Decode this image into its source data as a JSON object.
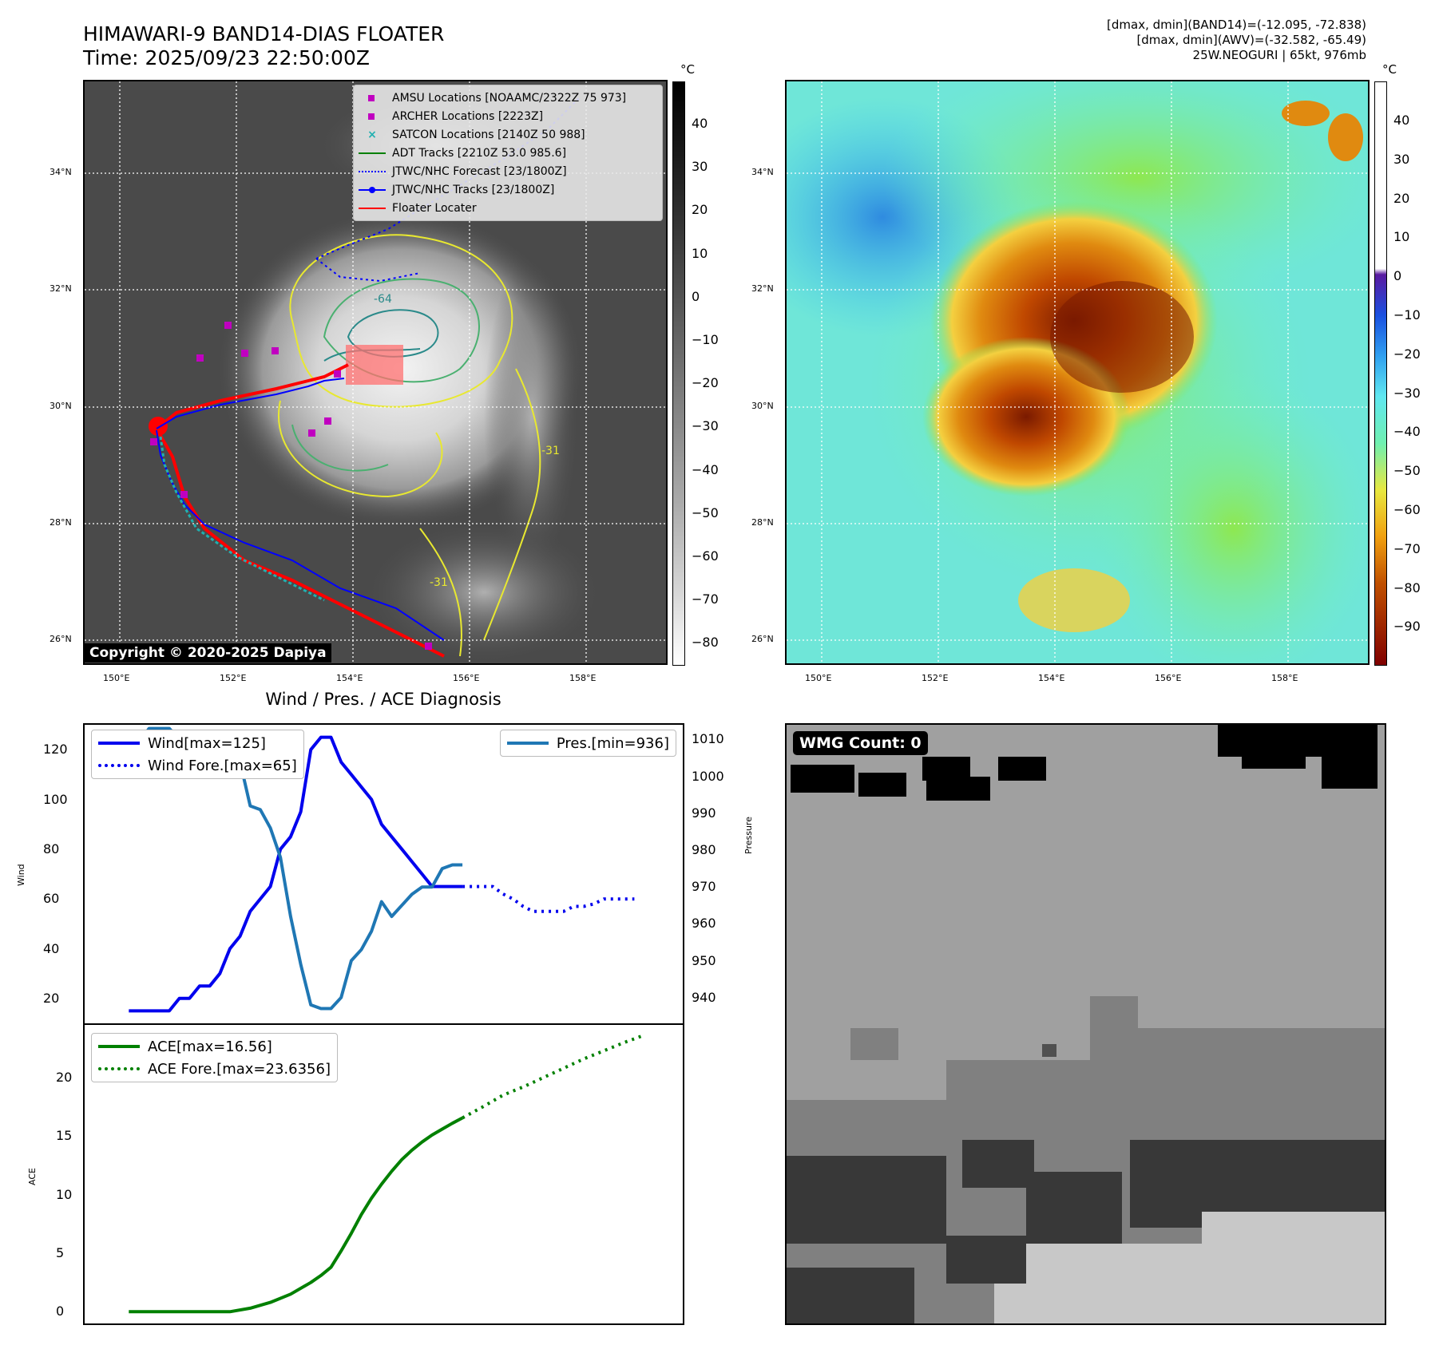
{
  "header": {
    "title_line1": "HIMAWARI-9 BAND14-DIAS FLOATER",
    "title_line2": "Time: 2025/09/23 22:50:00Z",
    "info_line1": "[dmax, dmin](BAND14)=(-12.095, -72.838)",
    "info_line2": "[dmax, dmin](AWV)=(-32.582, -65.49)",
    "info_line3": "25W.NEOGURI | 65kt, 976mb"
  },
  "map": {
    "lat_ticks": [
      "34°N",
      "32°N",
      "30°N",
      "28°N",
      "26°N"
    ],
    "lon_ticks": [
      "150°E",
      "152°E",
      "154°E",
      "156°E",
      "158°E"
    ],
    "copyright": "Copyright © 2020-2025 Dapiya",
    "contour_labels": [
      "-31",
      "-64",
      "-31",
      "-31",
      "-31"
    ],
    "colorbar_unit": "°C",
    "left_colorbar_ticks": [
      "40",
      "30",
      "20",
      "10",
      "0",
      "−10",
      "−20",
      "−30",
      "−40",
      "−50",
      "−60",
      "−70",
      "−80"
    ],
    "right_colorbar_ticks": [
      "40",
      "30",
      "20",
      "10",
      "0",
      "−10",
      "−20",
      "−30",
      "−40",
      "−50",
      "−60",
      "−70",
      "−80",
      "−90"
    ],
    "legend": [
      {
        "label": "AMSU Locations [NOAAMC/2322Z 75 973]",
        "symbol": "square",
        "color": "#c000c0"
      },
      {
        "label": "ARCHER Locations [2223Z]",
        "symbol": "square",
        "color": "#c000c0"
      },
      {
        "label": "SATCON Locations [2140Z 50 988]",
        "symbol": "x",
        "color": "#20b0b0"
      },
      {
        "label": "ADT Tracks [2210Z 53.0 985.6]",
        "symbol": "line",
        "color": "#008000"
      },
      {
        "label": "JTWC/NHC Forecast [23/1800Z]",
        "symbol": "dotted",
        "color": "#0000ff"
      },
      {
        "label": "JTWC/NHC Tracks [23/1800Z]",
        "symbol": "line-dot",
        "color": "#0000ff"
      },
      {
        "label": "Floater Locater",
        "symbol": "line",
        "color": "#ff0000"
      }
    ]
  },
  "bottom_right": {
    "wmg_label": "WMG Count: 0"
  },
  "chart_data": [
    {
      "type": "line",
      "title": "Wind / Pres. / ACE Diagnosis",
      "ylabel": "Wind",
      "ylabel_right": "Pressure",
      "ylim": [
        10,
        130
      ],
      "ylim_right": [
        933,
        1014
      ],
      "y_ticks": [
        20,
        40,
        60,
        80,
        100,
        120
      ],
      "y_ticks_right": [
        940,
        950,
        960,
        970,
        980,
        990,
        1000,
        1010
      ],
      "series": [
        {
          "name": "Wind[max=125]",
          "color": "#0000ee",
          "style": "solid",
          "axis": "left",
          "x": [
            0,
            1,
            2,
            3,
            4,
            5,
            6,
            7,
            8,
            9,
            10,
            11,
            12,
            13,
            14,
            15,
            16,
            17,
            18,
            19,
            20,
            21,
            22,
            23,
            24,
            25,
            26,
            27,
            28,
            29,
            30,
            31,
            32,
            33
          ],
          "values": [
            15,
            15,
            15,
            15,
            15,
            20,
            20,
            25,
            25,
            30,
            40,
            45,
            55,
            60,
            65,
            80,
            85,
            95,
            120,
            125,
            125,
            115,
            110,
            105,
            100,
            90,
            85,
            80,
            75,
            70,
            65,
            65,
            65,
            65
          ]
        },
        {
          "name": "Wind Fore.[max=65]",
          "color": "#0000ee",
          "style": "dotted",
          "axis": "left",
          "x": [
            33,
            34,
            35,
            36,
            37,
            38,
            39,
            40,
            41,
            42,
            43,
            44,
            45,
            46,
            47,
            48,
            49,
            50
          ],
          "values": [
            65,
            65,
            65,
            65,
            62,
            60,
            57,
            55,
            55,
            55,
            55,
            57,
            57,
            58,
            60,
            60,
            60,
            60
          ]
        },
        {
          "name": "Pres.[min=936]",
          "color": "#1f77b4",
          "style": "solid",
          "axis": "right",
          "x": [
            0,
            1,
            2,
            3,
            4,
            5,
            6,
            7,
            8,
            9,
            10,
            11,
            12,
            13,
            14,
            15,
            16,
            17,
            18,
            19,
            20,
            21,
            22,
            23,
            24,
            25,
            26,
            27,
            28,
            29,
            30,
            31,
            32,
            33
          ],
          "values": [
            1009,
            1009,
            1013,
            1013,
            1013,
            1010,
            1009,
            1009,
            1009,
            1009,
            1008,
            1004,
            992,
            991,
            986,
            978,
            962,
            949,
            938,
            937,
            937,
            940,
            950,
            953,
            958,
            966,
            962,
            965,
            968,
            970,
            970,
            975,
            976,
            976
          ]
        }
      ]
    },
    {
      "type": "line",
      "ylabel": "ACE",
      "ylim": [
        -1,
        24.5
      ],
      "y_ticks": [
        0,
        5,
        10,
        15,
        20
      ],
      "series": [
        {
          "name": "ACE[max=16.56]",
          "color": "#008000",
          "style": "solid",
          "x": [
            0,
            2,
            4,
            6,
            8,
            10,
            12,
            14,
            16,
            18,
            19,
            20,
            21,
            22,
            23,
            24,
            25,
            26,
            27,
            28,
            29,
            30,
            31,
            32,
            33
          ],
          "values": [
            0,
            0,
            0,
            0,
            0,
            0,
            0.3,
            0.8,
            1.5,
            2.5,
            3.1,
            3.8,
            5.2,
            6.7,
            8.3,
            9.7,
            10.9,
            12.0,
            13.0,
            13.8,
            14.5,
            15.1,
            15.6,
            16.1,
            16.56
          ]
        },
        {
          "name": "ACE Fore.[max=23.6356]",
          "color": "#008000",
          "style": "dotted",
          "x": [
            33,
            35,
            37,
            39,
            41,
            43,
            45,
            47,
            49,
            51
          ],
          "values": [
            16.56,
            17.5,
            18.5,
            19.2,
            20.0,
            20.8,
            21.6,
            22.3,
            23.0,
            23.6356
          ]
        }
      ]
    }
  ]
}
